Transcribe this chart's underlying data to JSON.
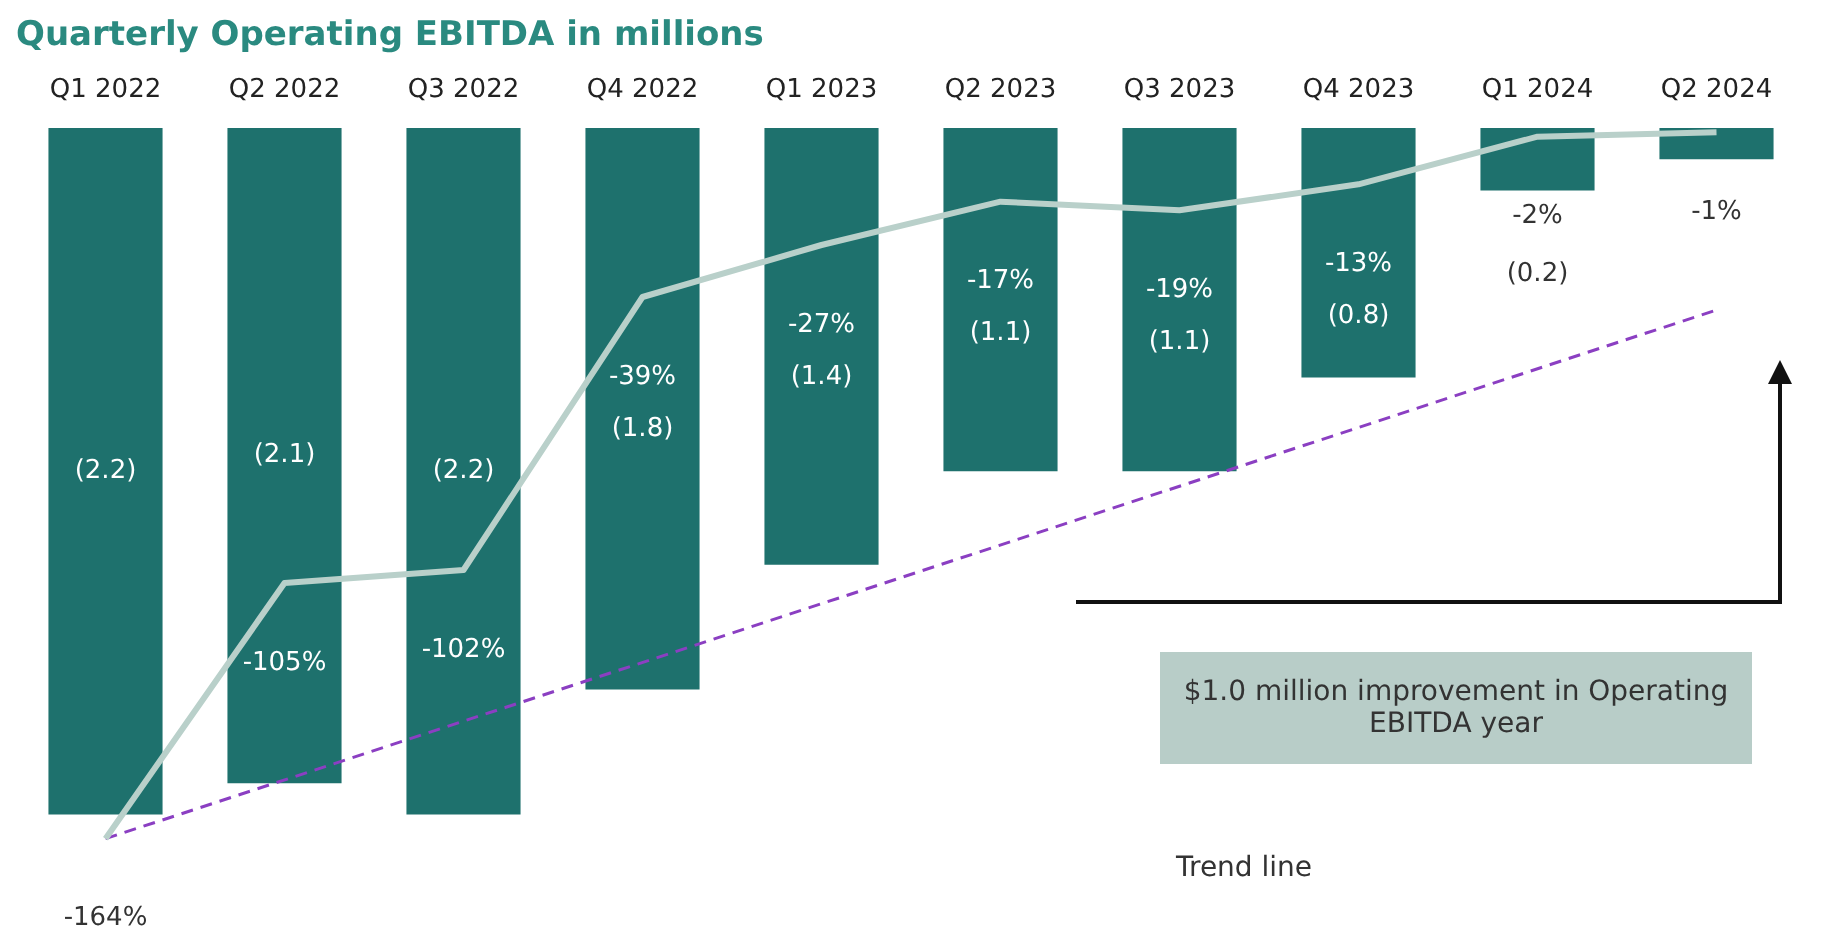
{
  "chart_data": {
    "type": "bar",
    "title": "Quarterly Operating EBITDA in millions",
    "categories": [
      "Q1 2022",
      "Q2 2022",
      "Q3 2022",
      "Q4 2022",
      "Q1 2023",
      "Q2 2023",
      "Q3 2023",
      "Q4 2023",
      "Q1 2024",
      "Q2 2024"
    ],
    "series": [
      {
        "color": "#1e716d",
        "values": [
          -2.2,
          -2.1,
          -2.2,
          -1.8,
          -1.4,
          -1.1,
          -1.1,
          -0.8,
          -0.2,
          -0.1
        ],
        "value_labels": [
          "(2.2)",
          "(2.1)",
          "(2.2)",
          "(1.8)",
          "(1.4)",
          "(1.1)",
          "(1.1)",
          "(0.8)",
          "(0.2)",
          null
        ]
      },
      {
        "type": "line",
        "axis": "y2",
        "color": "#b9d0ca",
        "values": [
          -164,
          -105,
          -102,
          -39,
          -27,
          -17,
          -19,
          -13,
          -2,
          -1
        ],
        "value_labels": [
          "-164%",
          "-105%",
          "-102%",
          "-39%",
          "-27%",
          "-17%",
          "-19%",
          "-13%",
          "-2%",
          "-1%"
        ]
      },
      {
        "type": "line",
        "axis": "y2",
        "color": "#8b3fc2",
        "line_style": "dashed",
        "values": [
          -164,
          null,
          null,
          null,
          null,
          null,
          null,
          null,
          null,
          -42
        ]
      }
    ],
    "annotations": [
      "$1.0 million improvement in Operating EBITDA year",
      "Trend line"
    ],
    "legend": false,
    "grid": false,
    "marker": "none"
  }
}
